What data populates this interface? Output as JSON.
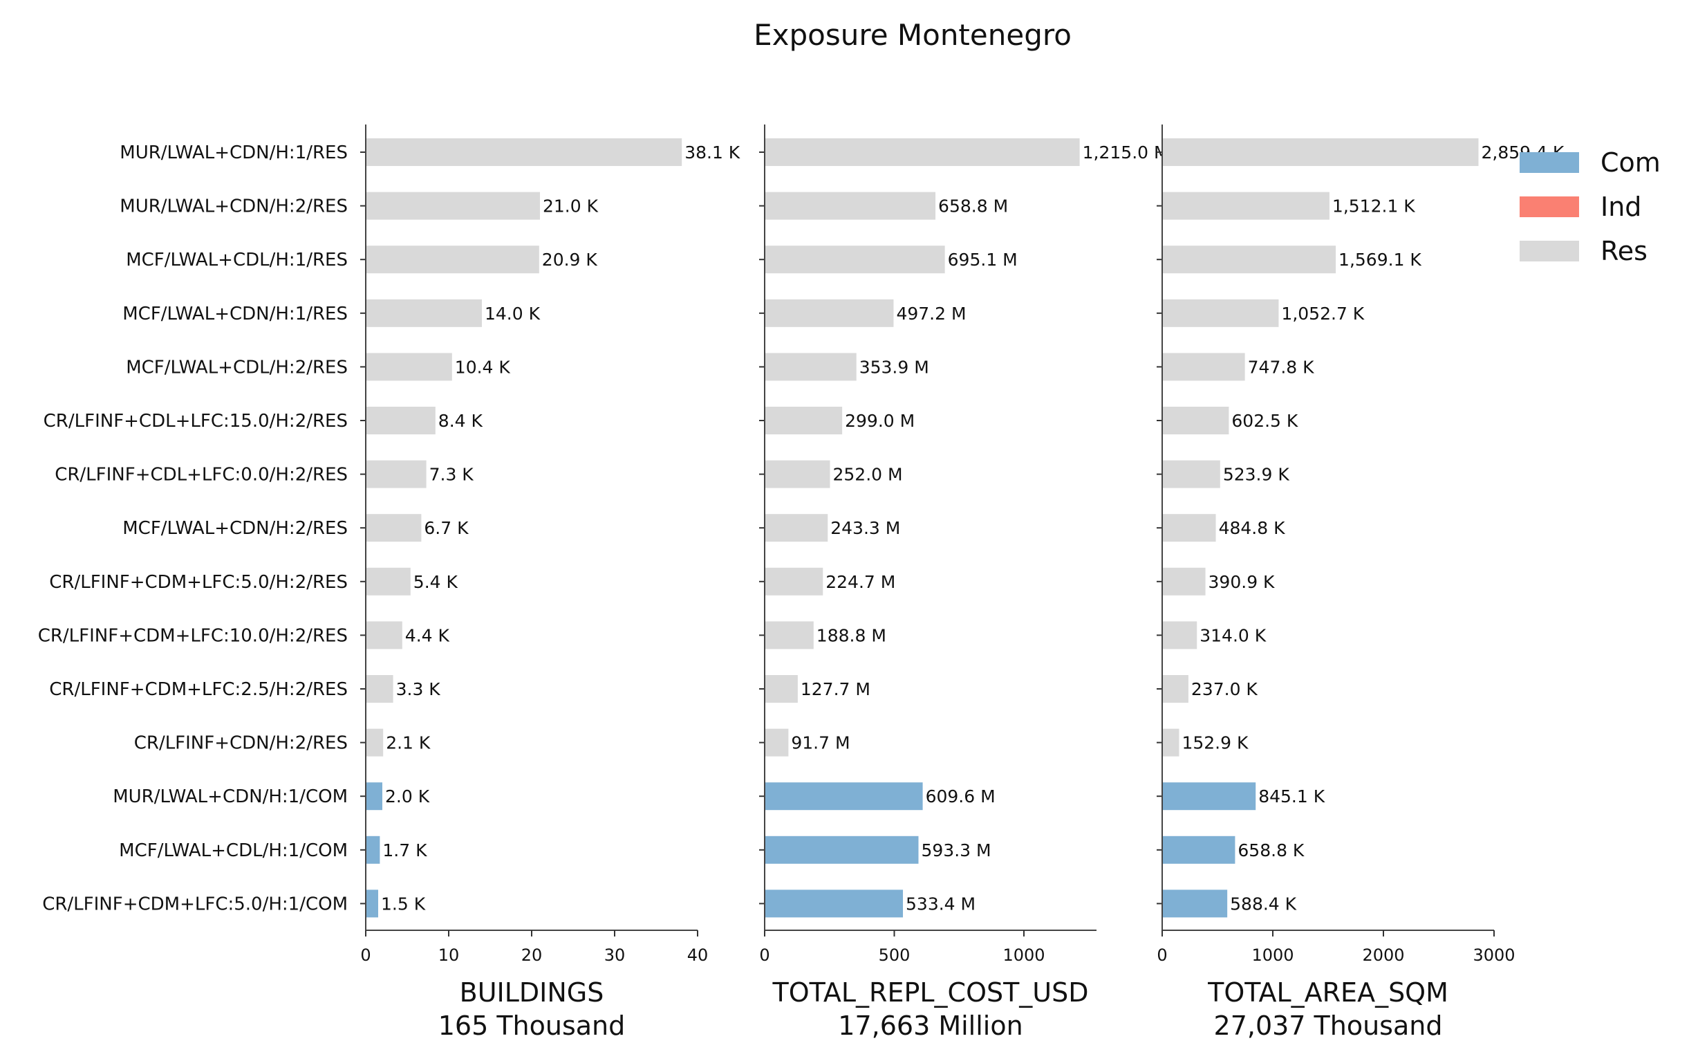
{
  "chart_data": {
    "type": "bar",
    "orientation": "horizontal",
    "title": "Exposure Montenegro",
    "categories": [
      "MUR/LWAL+CDN/H:1/RES",
      "MUR/LWAL+CDN/H:2/RES",
      "MCF/LWAL+CDL/H:1/RES",
      "MCF/LWAL+CDN/H:1/RES",
      "MCF/LWAL+CDL/H:2/RES",
      "CR/LFINF+CDL+LFC:15.0/H:2/RES",
      "CR/LFINF+CDL+LFC:0.0/H:2/RES",
      "MCF/LWAL+CDN/H:2/RES",
      "CR/LFINF+CDM+LFC:5.0/H:2/RES",
      "CR/LFINF+CDM+LFC:10.0/H:2/RES",
      "CR/LFINF+CDM+LFC:2.5/H:2/RES",
      "CR/LFINF+CDN/H:2/RES",
      "MUR/LWAL+CDN/H:1/COM",
      "MCF/LWAL+CDL/H:1/COM",
      "CR/LFINF+CDM+LFC:5.0/H:1/COM"
    ],
    "occupancy": [
      "Res",
      "Res",
      "Res",
      "Res",
      "Res",
      "Res",
      "Res",
      "Res",
      "Res",
      "Res",
      "Res",
      "Res",
      "Com",
      "Com",
      "Com"
    ],
    "colors": {
      "Com": "#7fb0d4",
      "Ind": "#fa8072",
      "Res": "#d9d9d9"
    },
    "legend": {
      "placement": "top-right",
      "entries": [
        "Com",
        "Ind",
        "Res"
      ]
    },
    "panels": [
      {
        "xlabel": "BUILDINGS",
        "total": "165 Thousand",
        "xlim": [
          0,
          40
        ],
        "ticks": [
          0,
          10,
          20,
          30,
          40
        ],
        "values": [
          38.1,
          21.0,
          20.9,
          14.0,
          10.4,
          8.4,
          7.3,
          6.7,
          5.4,
          4.4,
          3.3,
          2.1,
          2.0,
          1.7,
          1.5
        ],
        "labels": [
          "38.1 K",
          "21.0 K",
          "20.9 K",
          "14.0 K",
          "10.4 K",
          "8.4 K",
          "7.3 K",
          "6.7 K",
          "5.4 K",
          "4.4 K",
          "3.3 K",
          "2.1 K",
          "2.0 K",
          "1.7 K",
          "1.5 K"
        ]
      },
      {
        "xlabel": "TOTAL_REPL_COST_USD",
        "total": "17,663 Million",
        "xlim": [
          0,
          1280
        ],
        "ticks": [
          0,
          500,
          1000
        ],
        "values": [
          1215.0,
          658.8,
          695.1,
          497.2,
          353.9,
          299.0,
          252.0,
          243.3,
          224.7,
          188.8,
          127.7,
          91.7,
          609.6,
          593.3,
          533.4
        ],
        "labels": [
          "1,215.0 M",
          "658.8 M",
          "695.1 M",
          "497.2 M",
          "353.9 M",
          "299.0 M",
          "252.0 M",
          "243.3 M",
          "224.7 M",
          "188.8 M",
          "127.7 M",
          "91.7 M",
          "609.6 M",
          "593.3 M",
          "533.4 M"
        ]
      },
      {
        "xlabel": "TOTAL_AREA_SQM",
        "total": "27,037 Thousand",
        "xlim": [
          0,
          3000
        ],
        "ticks": [
          0,
          1000,
          2000,
          3000
        ],
        "values": [
          2859.4,
          1512.1,
          1569.1,
          1052.7,
          747.8,
          602.5,
          523.9,
          484.8,
          390.9,
          314.0,
          237.0,
          152.9,
          845.1,
          658.8,
          588.4
        ],
        "labels": [
          "2,859.4 K",
          "1,512.1 K",
          "1,569.1 K",
          "1,052.7 K",
          "747.8 K",
          "602.5 K",
          "523.9 K",
          "484.8 K",
          "390.9 K",
          "314.0 K",
          "237.0 K",
          "152.9 K",
          "845.1 K",
          "658.8 K",
          "588.4 K"
        ]
      }
    ]
  }
}
